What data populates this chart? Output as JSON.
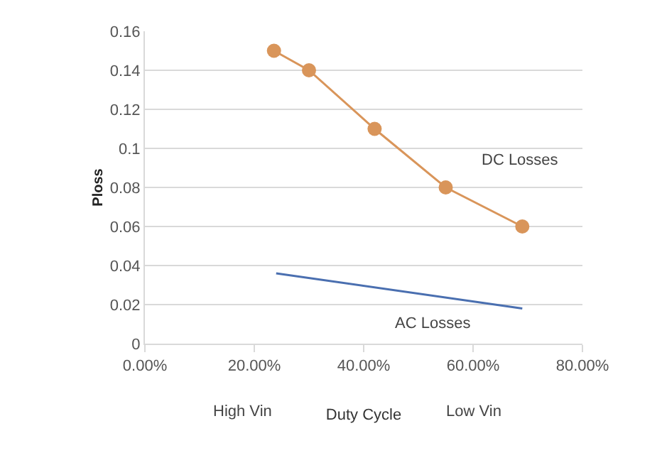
{
  "chart_data": {
    "type": "line",
    "xlabel": "Duty Cycle",
    "ylabel": "Ploss",
    "grid": "y",
    "xlim": [
      0,
      0.8
    ],
    "xticks": [
      {
        "value": 0,
        "label": "0.00%"
      },
      {
        "value": 0.2,
        "label": "20.00%"
      },
      {
        "value": 0.4,
        "label": "40.00%"
      },
      {
        "value": 0.6,
        "label": "60.00%"
      },
      {
        "value": 0.8,
        "label": "80.00%"
      }
    ],
    "ylim": [
      0,
      0.16
    ],
    "yticks": [
      0,
      0.02,
      0.04,
      0.06,
      0.08,
      {
        "value": 0.1,
        "label": "0.1"
      },
      0.12,
      0.14,
      0.16
    ],
    "series": [
      {
        "color": "#d9955a",
        "marker": "circle",
        "x": [
          0.236,
          0.3,
          0.42,
          0.55,
          0.69
        ],
        "values": [
          0.15,
          0.14,
          0.11,
          0.08,
          0.06
        ]
      },
      {
        "color": "#4a6fb0",
        "marker": "none",
        "x": [
          0.24,
          0.69
        ],
        "values": [
          0.036,
          0.018
        ]
      }
    ],
    "annotations": [
      "DC Losses",
      "AC Losses",
      "High Vin",
      "Low Vin"
    ]
  }
}
